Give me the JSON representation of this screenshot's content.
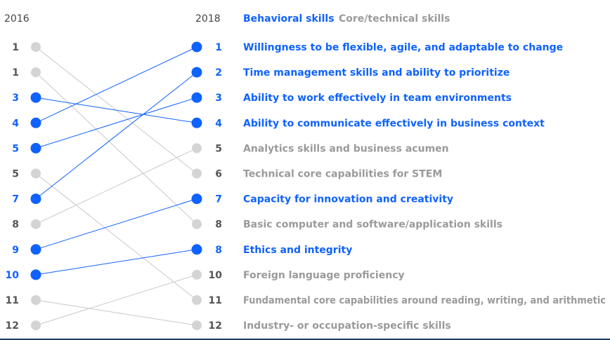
{
  "chart_data": {
    "type": "slope",
    "left_column_label": "2016",
    "right_column_label": "2018",
    "legend": [
      {
        "label": "Behavioral skills",
        "category": "behavioral"
      },
      {
        "label": "Core/technical skills",
        "category": "core"
      }
    ],
    "colors": {
      "behavioral": "#0f62fe",
      "core": "#9a9a9a",
      "core_line": "#c8c8c8",
      "core_dot": "#d4d4d4"
    },
    "left_ranks": [
      {
        "rank": "1",
        "category": "core"
      },
      {
        "rank": "1",
        "category": "core"
      },
      {
        "rank": "3",
        "category": "behavioral"
      },
      {
        "rank": "4",
        "category": "behavioral"
      },
      {
        "rank": "5",
        "category": "behavioral"
      },
      {
        "rank": "5",
        "category": "core"
      },
      {
        "rank": "7",
        "category": "behavioral"
      },
      {
        "rank": "8",
        "category": "core"
      },
      {
        "rank": "9",
        "category": "behavioral"
      },
      {
        "rank": "10",
        "category": "behavioral"
      },
      {
        "rank": "11",
        "category": "core"
      },
      {
        "rank": "12",
        "category": "core"
      }
    ],
    "skills": [
      {
        "rank": "1",
        "label": "Willingness to be flexible, agile, and adaptable to change",
        "category": "behavioral"
      },
      {
        "rank": "2",
        "label": "Time management skills and ability to prioritize",
        "category": "behavioral"
      },
      {
        "rank": "3",
        "label": "Ability to work effectively in team environments",
        "category": "behavioral"
      },
      {
        "rank": "4",
        "label": "Ability to communicate effectively in business context",
        "category": "behavioral"
      },
      {
        "rank": "5",
        "label": "Analytics skills and business acumen",
        "category": "core"
      },
      {
        "rank": "6",
        "label": "Technical core capabilities for STEM",
        "category": "core"
      },
      {
        "rank": "7",
        "label": "Capacity for innovation and creativity",
        "category": "behavioral"
      },
      {
        "rank": "8",
        "label": "Basic computer and software/application skills",
        "category": "core"
      },
      {
        "rank": "8",
        "label": "Ethics and integrity",
        "category": "behavioral"
      },
      {
        "rank": "10",
        "label": "Foreign language proficiency",
        "category": "core"
      },
      {
        "rank": "11",
        "label": "Fundamental core capabilities around reading, writing, and arithmetic",
        "category": "core"
      },
      {
        "rank": "12",
        "label": "Industry- or occupation-specific skills",
        "category": "core"
      }
    ],
    "connections": [
      {
        "from": 0,
        "to": 5
      },
      {
        "from": 1,
        "to": 7
      },
      {
        "from": 2,
        "to": 3
      },
      {
        "from": 3,
        "to": 0
      },
      {
        "from": 4,
        "to": 2
      },
      {
        "from": 5,
        "to": 10
      },
      {
        "from": 6,
        "to": 1
      },
      {
        "from": 7,
        "to": 4
      },
      {
        "from": 8,
        "to": 6
      },
      {
        "from": 9,
        "to": 8
      },
      {
        "from": 10,
        "to": 11
      },
      {
        "from": 11,
        "to": 9
      }
    ]
  }
}
